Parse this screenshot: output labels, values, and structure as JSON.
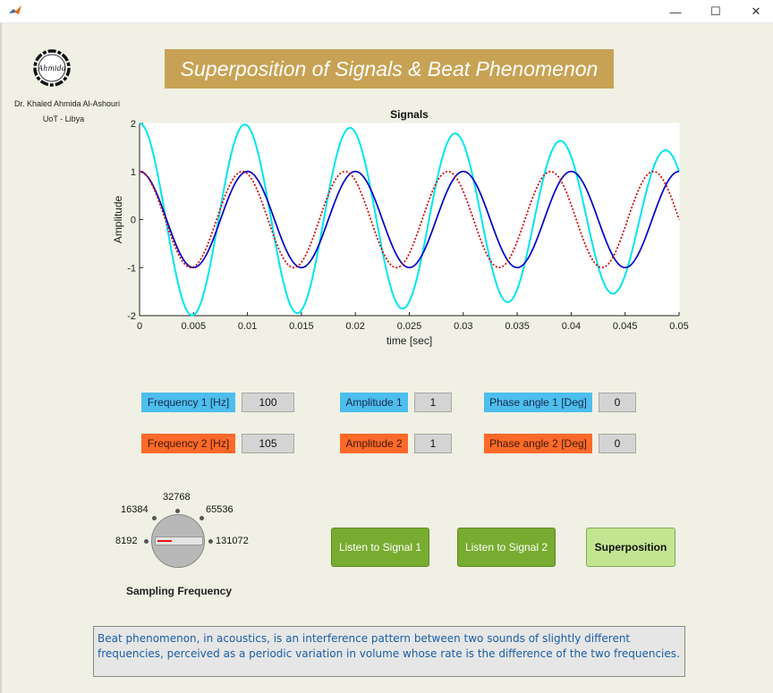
{
  "window": {
    "minimize_glyph": "—",
    "maximize_glyph": "☐",
    "close_glyph": "✕"
  },
  "logo": {
    "text": "Ahmida"
  },
  "author": {
    "name": "Dr. Khaled Ahmida Al-Ashouri",
    "affiliation": "UoT - Libya"
  },
  "title": "Superposition of Signals & Beat Phenomenon",
  "controls": {
    "frequency1": {
      "label": "Frequency 1 [Hz]",
      "value": "100"
    },
    "frequency2": {
      "label": "Frequency 2 [Hz]",
      "value": "105"
    },
    "amplitude1": {
      "label": "Amplitude 1",
      "value": "1"
    },
    "amplitude2": {
      "label": "Amplitude 2",
      "value": "1"
    },
    "phase1": {
      "label": "Phase angle 1 [Deg]",
      "value": "0"
    },
    "phase2": {
      "label": "Phase angle 2 [Deg]",
      "value": "0"
    }
  },
  "sampling": {
    "title": "Sampling Frequency",
    "options": [
      "8192",
      "16384",
      "32768",
      "65536",
      "131072"
    ],
    "selected": "8192"
  },
  "buttons": {
    "listen1": "Listen to Signal 1",
    "listen2": "Listen to Signal 2",
    "superposition": "Superposition"
  },
  "description": "Beat phenomenon, in acoustics, is an interference pattern between two sounds of slightly different frequencies, perceived as a periodic variation in volume whose rate is the difference of the two frequencies.",
  "colors": {
    "signal1": "#0000c8",
    "signal2": "#d40000",
    "superposition": "#00e5ee",
    "title_bg": "#c8a254",
    "label_blue": "#4dbeee",
    "label_orange": "#ff6929",
    "button_dark": "#77ac30",
    "button_light": "#c3e591"
  },
  "chart_data": {
    "type": "line",
    "title": "Signals",
    "xlabel": "time [sec]",
    "ylabel": "Amplitude",
    "xlim": [
      0,
      0.05
    ],
    "ylim": [
      -2,
      2
    ],
    "x_ticks": [
      0,
      0.005,
      0.01,
      0.015,
      0.02,
      0.025,
      0.03,
      0.035,
      0.04,
      0.045,
      0.05
    ],
    "x_tick_labels": [
      "0",
      "0.005",
      "0.01",
      "0.015",
      "0.02",
      "0.025",
      "0.03",
      "0.035",
      "0.04",
      "0.045",
      "0.05"
    ],
    "y_ticks": [
      -2,
      -1,
      0,
      1,
      2
    ],
    "y_tick_labels": [
      "-2",
      "-1",
      "0",
      "1",
      "2"
    ],
    "grid": false,
    "series": [
      {
        "name": "Signal 1",
        "amplitude": 1,
        "frequency_hz": 100,
        "phase_deg": 0,
        "style": "solid",
        "color": "#0000c8"
      },
      {
        "name": "Signal 2",
        "amplitude": 1,
        "frequency_hz": 105,
        "phase_deg": 0,
        "style": "dotted",
        "color": "#d40000"
      },
      {
        "name": "Superposition",
        "components": [
          "Signal 1",
          "Signal 2"
        ],
        "style": "solid",
        "color": "#00e5ee"
      }
    ]
  }
}
